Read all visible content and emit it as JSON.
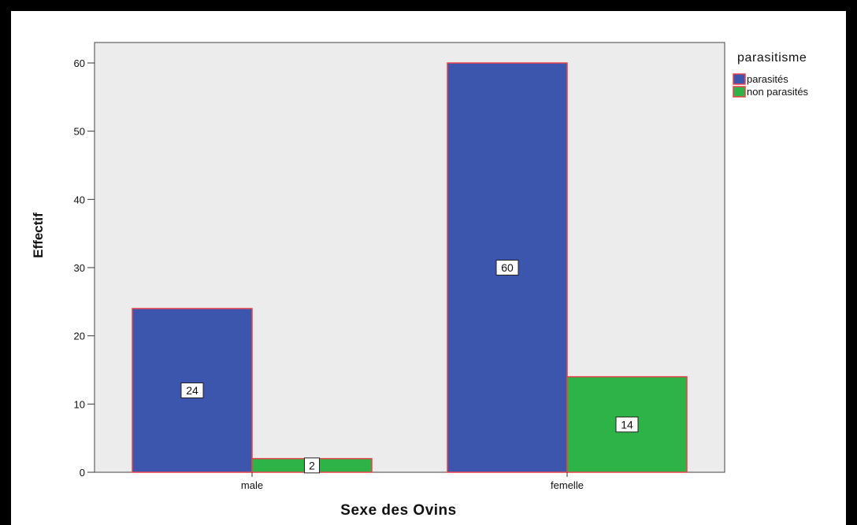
{
  "chart_data": {
    "type": "bar",
    "xlabel": "Sexe des Ovins",
    "ylabel": "Effectif",
    "categories": [
      "male",
      "femelle"
    ],
    "series": [
      {
        "name": "parasités",
        "values": [
          24,
          60
        ],
        "color": "#3b56ac"
      },
      {
        "name": "non parasités",
        "values": [
          2,
          14
        ],
        "color": "#2eb347"
      }
    ],
    "ylim": [
      0,
      63
    ],
    "yticks": [
      0,
      10,
      20,
      30,
      40,
      50,
      60
    ],
    "legend": {
      "title": "parasitisme",
      "position": "top-right"
    },
    "data_labels": true,
    "grid": false,
    "colors": {
      "plot_background": "#ececec",
      "bar_border": "#e8434a",
      "frame": "#000000"
    }
  }
}
